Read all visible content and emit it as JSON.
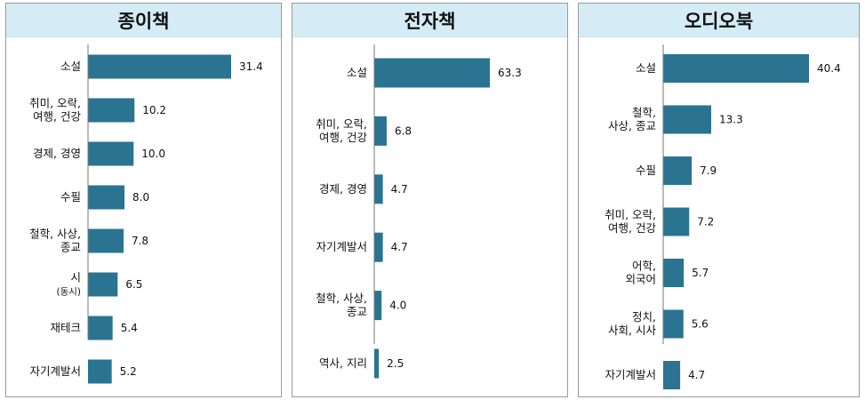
{
  "chart_data": [
    {
      "type": "bar",
      "orientation": "horizontal",
      "title": "종이책",
      "categories": [
        [
          "소설"
        ],
        [
          "취미, 오락,",
          "여행, 건강"
        ],
        [
          "경제, 경영"
        ],
        [
          "수필"
        ],
        [
          "철학, 사상,",
          "종교"
        ],
        [
          "시",
          "(동시)"
        ],
        [
          "재테크"
        ],
        [
          "자기계발서"
        ]
      ],
      "values": [
        31.4,
        10.2,
        10.0,
        8.0,
        7.8,
        6.5,
        5.4,
        5.2
      ],
      "value_labels": [
        "31.4",
        "10.2",
        "10.0",
        "8.0",
        "7.8",
        "6.5",
        "5.4",
        "5.2"
      ],
      "xlim": [
        0,
        31.4
      ],
      "bar_color": "#2a7491"
    },
    {
      "type": "bar",
      "orientation": "horizontal",
      "title": "전자책",
      "categories": [
        [
          "소설"
        ],
        [
          "취미, 오락,",
          "여행, 건강"
        ],
        [
          "경제, 경영"
        ],
        [
          "자기계발서"
        ],
        [
          "철학, 사상,",
          "종교"
        ],
        [
          "역사, 지리"
        ]
      ],
      "values": [
        63.3,
        6.8,
        4.7,
        4.7,
        4.0,
        2.5
      ],
      "value_labels": [
        "63.3",
        "6.8",
        "4.7",
        "4.7",
        "4.0",
        "2.5"
      ],
      "xlim": [
        0,
        63.3
      ],
      "bar_color": "#2a7491"
    },
    {
      "type": "bar",
      "orientation": "horizontal",
      "title": "오디오북",
      "categories": [
        [
          "소설"
        ],
        [
          "철학,",
          "사상, 종교"
        ],
        [
          "수필"
        ],
        [
          "취미, 오락,",
          "여행, 건강"
        ],
        [
          "어학,",
          "외국어"
        ],
        [
          "정치,",
          "사회, 시사"
        ],
        [
          "자기계발서"
        ]
      ],
      "values": [
        40.4,
        13.3,
        7.9,
        7.2,
        5.7,
        5.6,
        4.7
      ],
      "value_labels": [
        "40.4",
        "13.3",
        "7.9",
        "7.2",
        "5.7",
        "5.6",
        "4.7"
      ],
      "xlim": [
        0,
        40.4
      ],
      "bar_color": "#2a7491"
    }
  ]
}
